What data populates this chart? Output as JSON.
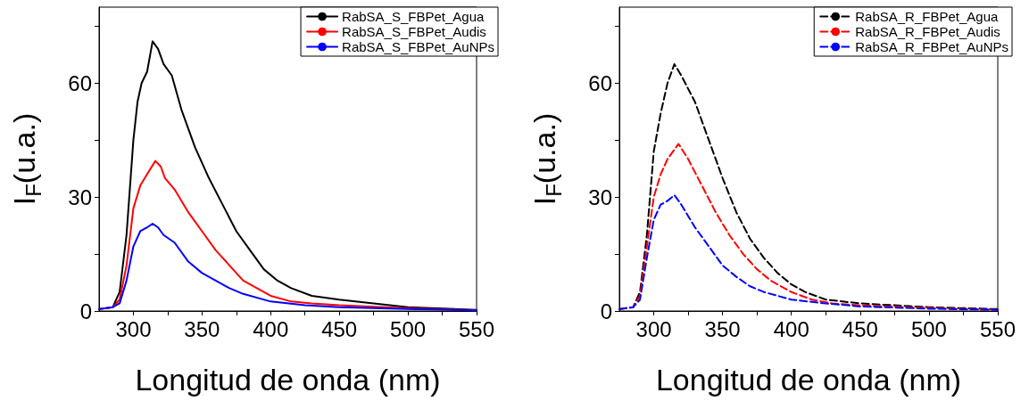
{
  "chart_data": [
    {
      "type": "line",
      "xlabel": "Longitud de onda (nm)",
      "ylabel": "I$_{F}$(u.a.)",
      "xlim": [
        275,
        550
      ],
      "ylim": [
        0,
        80
      ],
      "xticks": [
        300,
        {
          "value": 325,
          "label": null
        },
        350,
        {
          "value": 375,
          "label": null
        },
        400,
        {
          "value": 425,
          "label": null
        },
        450,
        {
          "value": 475,
          "label": null
        },
        500,
        {
          "value": 525,
          "label": null
        },
        550
      ],
      "yticks": [
        0,
        {
          "value": 15,
          "label": null
        },
        30,
        {
          "value": 45,
          "label": null
        },
        60,
        {
          "value": 75,
          "label": null
        }
      ],
      "legend": "top right",
      "grid": false,
      "marker": "none",
      "line_style": "solid",
      "series": [
        {
          "name": "RabSA_S_FBPet_Agua",
          "color": "#000000",
          "x": [
            275,
            285,
            290,
            295,
            300,
            303,
            306,
            310,
            314,
            318,
            322,
            328,
            335,
            345,
            355,
            365,
            375,
            385,
            395,
            405,
            415,
            430,
            450,
            475,
            500,
            550
          ],
          "values": [
            0.5,
            1,
            5,
            20,
            45,
            55,
            60,
            63,
            71,
            69,
            65,
            62,
            53,
            43,
            35,
            28,
            21,
            16,
            11,
            8,
            6,
            4,
            3,
            2,
            1,
            0.3
          ]
        },
        {
          "name": "RabSA_S_FBPet_Audis",
          "color": "#ff0000",
          "x": [
            275,
            285,
            290,
            295,
            300,
            305,
            310,
            316,
            320,
            323,
            330,
            340,
            350,
            360,
            370,
            380,
            390,
            400,
            415,
            430,
            450,
            500,
            550
          ],
          "values": [
            0.5,
            1,
            3,
            12,
            27,
            33,
            36,
            39.5,
            38,
            35,
            32,
            26,
            21,
            16,
            12,
            8,
            6,
            4,
            2.5,
            2,
            1.5,
            0.7,
            0.2
          ]
        },
        {
          "name": "RabSA_S_FBPet_AuNPs",
          "color": "#0000ff",
          "x": [
            275,
            285,
            290,
            295,
            300,
            305,
            310,
            314,
            318,
            322,
            330,
            340,
            350,
            360,
            370,
            380,
            400,
            425,
            450,
            500,
            550
          ],
          "values": [
            0.5,
            1,
            2,
            8,
            17,
            21,
            22,
            23,
            22,
            20,
            18,
            13,
            10,
            8,
            6,
            4.5,
            2.5,
            1.5,
            1,
            0.5,
            0.2
          ]
        }
      ]
    },
    {
      "type": "line",
      "xlabel": "Longitud de onda (nm)",
      "ylabel": "I$_{F}$(u.a.)",
      "xlim": [
        275,
        550
      ],
      "ylim": [
        0,
        80
      ],
      "xticks": [
        300,
        {
          "value": 325,
          "label": null
        },
        350,
        {
          "value": 375,
          "label": null
        },
        400,
        {
          "value": 425,
          "label": null
        },
        450,
        {
          "value": 475,
          "label": null
        },
        500,
        {
          "value": 525,
          "label": null
        },
        550
      ],
      "yticks": [
        0,
        {
          "value": 15,
          "label": null
        },
        30,
        {
          "value": 45,
          "label": null
        },
        60,
        {
          "value": 75,
          "label": null
        }
      ],
      "legend": "top right",
      "grid": false,
      "marker": "none",
      "line_style": "dashed",
      "series": [
        {
          "name": "RabSA_R_FBPet_Agua",
          "color": "#000000",
          "x": [
            275,
            285,
            290,
            295,
            300,
            305,
            310,
            315,
            320,
            330,
            340,
            350,
            360,
            370,
            380,
            390,
            400,
            410,
            425,
            450,
            475,
            500,
            550
          ],
          "values": [
            0.5,
            1,
            5,
            20,
            42,
            52,
            60,
            65,
            62,
            55,
            45,
            35,
            26,
            19,
            14,
            10,
            7,
            5,
            3,
            2,
            1.5,
            1,
            0.5
          ]
        },
        {
          "name": "RabSA_R_FBPet_Audis",
          "color": "#ff0000",
          "x": [
            275,
            285,
            290,
            295,
            300,
            305,
            310,
            318,
            325,
            335,
            345,
            355,
            365,
            375,
            385,
            400,
            415,
            430,
            450,
            500,
            550
          ],
          "values": [
            0.5,
            1,
            4,
            17,
            30,
            36,
            40,
            44,
            40,
            33,
            26,
            20,
            15,
            11,
            8,
            5,
            3,
            2,
            1.5,
            0.8,
            0.3
          ]
        },
        {
          "name": "RabSA_R_FBPet_AuNPs",
          "color": "#0000ff",
          "x": [
            275,
            285,
            290,
            295,
            300,
            305,
            310,
            315,
            320,
            330,
            340,
            350,
            360,
            370,
            380,
            390,
            400,
            425,
            450,
            500,
            550
          ],
          "values": [
            0.5,
            1,
            3,
            14,
            24,
            28,
            29,
            30.5,
            28,
            22,
            17,
            12,
            9,
            6.5,
            5,
            4,
            3,
            2,
            1.2,
            0.6,
            0.3
          ]
        }
      ]
    }
  ]
}
